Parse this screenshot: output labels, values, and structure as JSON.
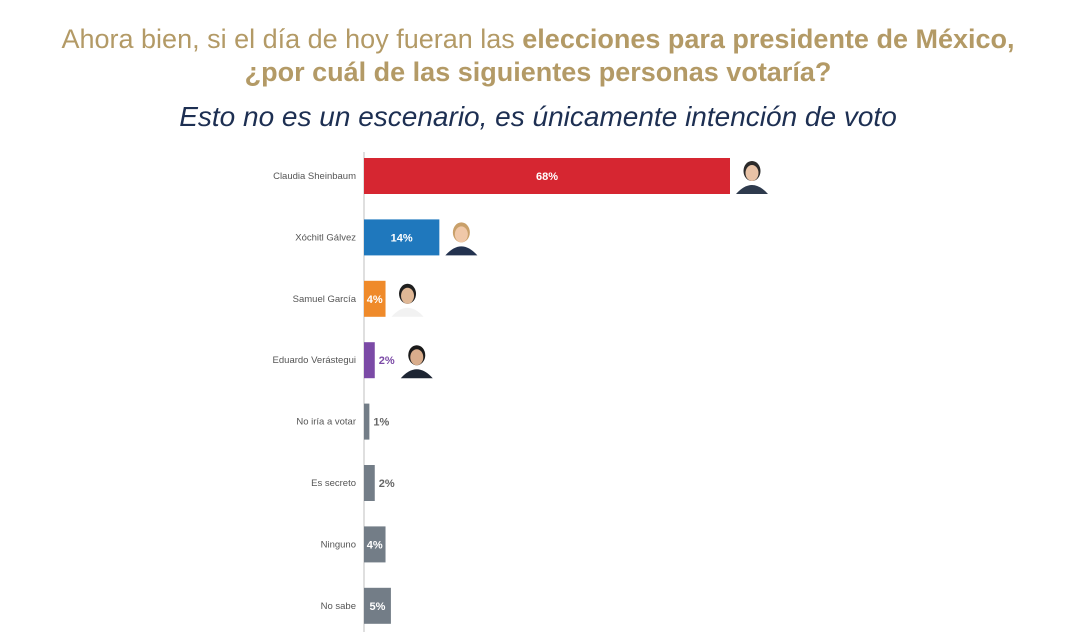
{
  "header": {
    "line1_normal": "Ahora bien, si el día de hoy fueran las ",
    "line1_bold": "elecciones para presidente de México,",
    "line2": "¿por cuál de las siguientes personas votaría?",
    "subtitle": "Esto no es un escenario, es únicamente intención de voto"
  },
  "chart_data": {
    "type": "bar",
    "orientation": "horizontal",
    "title": "Ahora bien, si el día de hoy fueran las elecciones para presidente de México, ¿por cuál de las siguientes personas votaría?",
    "subtitle": "Esto no es un escenario, es únicamente intención de voto",
    "categories": [
      "Claudia Sheinbaum",
      "Xóchitl Gálvez",
      "Samuel García",
      "Eduardo Verástegui",
      "No iría a votar",
      "Es secreto",
      "Ninguno",
      "No sabe"
    ],
    "values": [
      68,
      14,
      4,
      2,
      1,
      2,
      4,
      5
    ],
    "labels": [
      "68%",
      "14%",
      "4%",
      "2%",
      "1%",
      "2%",
      "4%",
      "5%"
    ],
    "colors": [
      "#d62631",
      "#1f78bd",
      "#ef8a2a",
      "#7b4aa6",
      "#737d87",
      "#737d87",
      "#737d87",
      "#737d87"
    ],
    "label_position": [
      "inside",
      "inside",
      "inside",
      "outside",
      "outside",
      "outside",
      "inside",
      "inside"
    ],
    "photos": [
      "candidate-photo",
      "candidate-photo",
      "candidate-photo",
      "candidate-photo",
      null,
      null,
      null,
      null
    ],
    "xlim": [
      0,
      68
    ],
    "grid": false,
    "xlabel": "",
    "ylabel": ""
  }
}
